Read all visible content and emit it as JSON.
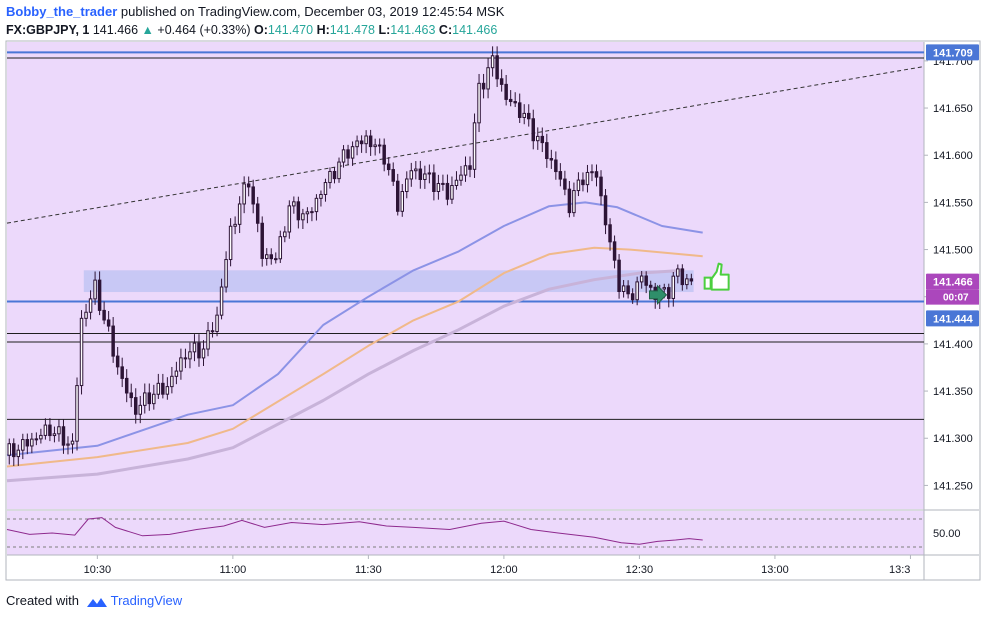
{
  "header": {
    "user": "Bobby_the_trader",
    "published_text": "published on TradingView.com, December 03, 2019 12:45:54 MSK",
    "symbol": "FX:GBPJPY, 1",
    "last": "141.466",
    "change": "+0.464 (+0.33%)",
    "open_label": "O:",
    "open_value": "141.470",
    "high_label": "H:",
    "high_value": "141.478",
    "low_label": "L:",
    "low_value": "141.463",
    "close_label": "C:",
    "close_value": "141.466"
  },
  "footer": {
    "created_with": "Created with",
    "brand": "TradingView"
  },
  "colors": {
    "background": "#ecd9fb",
    "candle": "#2d1436",
    "ma_fast": "#8c93e6",
    "ma_mid": "#f0b98a",
    "ma_slow": "#c8b3d9",
    "level_blue": "#4a76d6",
    "zone": "#c2c4f3",
    "rsi": "#8e2a8e",
    "thumb": "#4ccf3f",
    "arrow": "#2f8f6a"
  },
  "chart_data": {
    "type": "candlestick",
    "symbol": "FX:GBPJPY",
    "interval": "1",
    "y_axis": {
      "min": 141.225,
      "max": 141.72,
      "ticks": [
        "141.700",
        "141.650",
        "141.600",
        "141.550",
        "141.500",
        "141.450",
        "141.400",
        "141.350",
        "141.300",
        "141.250"
      ]
    },
    "x_axis": {
      "start": "10:10",
      "end": "13:33",
      "ticks": [
        "10:30",
        "11:00",
        "11:30",
        "12:00",
        "12:30",
        "13:00",
        "13:3"
      ]
    },
    "price_labels": [
      {
        "value": 141.709,
        "text": "141.709",
        "color": "#4a76d6"
      },
      {
        "value": 141.466,
        "text": "141.466",
        "color": "#ab47bc"
      },
      {
        "value": 141.444,
        "text": "141.444",
        "color": "#4a76d6"
      }
    ],
    "countdown": "00:07",
    "horizontal_lines": [
      {
        "value": 141.709,
        "style": "blue"
      },
      {
        "value": 141.703,
        "style": "black"
      },
      {
        "value": 141.445,
        "style": "black"
      },
      {
        "value": 141.445,
        "style": "blue"
      },
      {
        "value": 141.411,
        "style": "black"
      },
      {
        "value": 141.402,
        "style": "black"
      },
      {
        "value": 141.32,
        "style": "black"
      }
    ],
    "zone": {
      "top": 141.478,
      "bottom": 141.455
    },
    "trend_line": {
      "x1": "10:10",
      "y1": 141.528,
      "x2": "13:33",
      "y2": 141.694
    },
    "ohlc_anchors": [
      [
        "10:10",
        141.282
      ],
      [
        "10:15",
        141.295
      ],
      [
        "10:20",
        141.31
      ],
      [
        "10:25",
        141.292
      ],
      [
        "10:27",
        141.425
      ],
      [
        "10:30",
        141.46
      ],
      [
        "10:33",
        141.41
      ],
      [
        "10:36",
        141.36
      ],
      [
        "10:39",
        141.33
      ],
      [
        "10:42",
        141.345
      ],
      [
        "10:46",
        141.355
      ],
      [
        "10:50",
        141.39
      ],
      [
        "10:54",
        141.395
      ],
      [
        "10:57",
        141.43
      ],
      [
        "11:00",
        141.52
      ],
      [
        "11:04",
        141.575
      ],
      [
        "11:07",
        141.495
      ],
      [
        "11:10",
        141.49
      ],
      [
        "11:13",
        141.545
      ],
      [
        "11:17",
        141.535
      ],
      [
        "11:21",
        141.57
      ],
      [
        "11:26",
        141.605
      ],
      [
        "11:30",
        141.618
      ],
      [
        "11:34",
        141.6
      ],
      [
        "11:37",
        141.548
      ],
      [
        "11:40",
        141.585
      ],
      [
        "11:44",
        141.575
      ],
      [
        "11:48",
        141.56
      ],
      [
        "11:53",
        141.592
      ],
      [
        "11:55",
        141.67
      ],
      [
        "11:58",
        141.7
      ],
      [
        "12:01",
        141.66
      ],
      [
        "12:04",
        141.648
      ],
      [
        "12:07",
        141.625
      ],
      [
        "12:12",
        141.585
      ],
      [
        "12:15",
        141.548
      ],
      [
        "12:18",
        141.578
      ],
      [
        "12:21",
        141.58
      ],
      [
        "12:24",
        141.505
      ],
      [
        "12:26",
        141.465
      ],
      [
        "12:28",
        141.448
      ],
      [
        "12:31",
        141.47
      ],
      [
        "12:34",
        141.452
      ],
      [
        "12:37",
        141.458
      ],
      [
        "12:39",
        141.475
      ],
      [
        "12:41",
        141.466
      ]
    ],
    "ma_fast_points": [
      [
        "10:10",
        141.282
      ],
      [
        "10:30",
        141.292
      ],
      [
        "10:50",
        141.325
      ],
      [
        "11:00",
        141.335
      ],
      [
        "11:10",
        141.368
      ],
      [
        "11:20",
        141.42
      ],
      [
        "11:30",
        141.45
      ],
      [
        "11:40",
        141.478
      ],
      [
        "11:50",
        141.498
      ],
      [
        "12:00",
        141.525
      ],
      [
        "12:10",
        141.546
      ],
      [
        "12:18",
        141.55
      ],
      [
        "12:25",
        141.545
      ],
      [
        "12:35",
        141.525
      ],
      [
        "12:44",
        141.518
      ]
    ],
    "ma_mid_points": [
      [
        "10:10",
        141.27
      ],
      [
        "10:30",
        141.28
      ],
      [
        "10:50",
        141.295
      ],
      [
        "11:00",
        141.31
      ],
      [
        "11:20",
        141.368
      ],
      [
        "11:30",
        141.398
      ],
      [
        "11:40",
        141.425
      ],
      [
        "11:50",
        141.445
      ],
      [
        "12:00",
        141.475
      ],
      [
        "12:10",
        141.495
      ],
      [
        "12:20",
        141.502
      ],
      [
        "12:28",
        141.5
      ],
      [
        "12:44",
        141.493
      ]
    ],
    "ma_slow_points": [
      [
        "10:10",
        141.255
      ],
      [
        "10:30",
        141.262
      ],
      [
        "10:50",
        141.278
      ],
      [
        "11:00",
        141.29
      ],
      [
        "11:20",
        141.34
      ],
      [
        "11:30",
        141.368
      ],
      [
        "11:40",
        141.393
      ],
      [
        "11:50",
        141.415
      ],
      [
        "12:00",
        141.44
      ],
      [
        "12:10",
        141.458
      ],
      [
        "12:20",
        141.468
      ],
      [
        "12:30",
        141.475
      ],
      [
        "12:40",
        141.478
      ]
    ],
    "rsi": {
      "level_label": "50.00",
      "upper": 70,
      "lower": 30,
      "min": 20,
      "max": 80,
      "points": [
        [
          "10:10",
          55
        ],
        [
          "10:15",
          48
        ],
        [
          "10:20",
          50
        ],
        [
          "10:25",
          47
        ],
        [
          "10:28",
          70
        ],
        [
          "10:31",
          72
        ],
        [
          "10:34",
          58
        ],
        [
          "10:40",
          46
        ],
        [
          "10:46",
          48
        ],
        [
          "10:52",
          55
        ],
        [
          "10:58",
          60
        ],
        [
          "11:02",
          68
        ],
        [
          "11:07",
          58
        ],
        [
          "11:13",
          65
        ],
        [
          "11:20",
          62
        ],
        [
          "11:28",
          66
        ],
        [
          "11:34",
          60
        ],
        [
          "11:40",
          58
        ],
        [
          "11:48",
          55
        ],
        [
          "11:55",
          64
        ],
        [
          "12:00",
          67
        ],
        [
          "12:06",
          55
        ],
        [
          "12:12",
          50
        ],
        [
          "12:20",
          44
        ],
        [
          "12:26",
          36
        ],
        [
          "12:30",
          34
        ],
        [
          "12:34",
          38
        ],
        [
          "12:38",
          40
        ],
        [
          "12:41",
          42
        ],
        [
          "12:44",
          40
        ]
      ]
    }
  }
}
